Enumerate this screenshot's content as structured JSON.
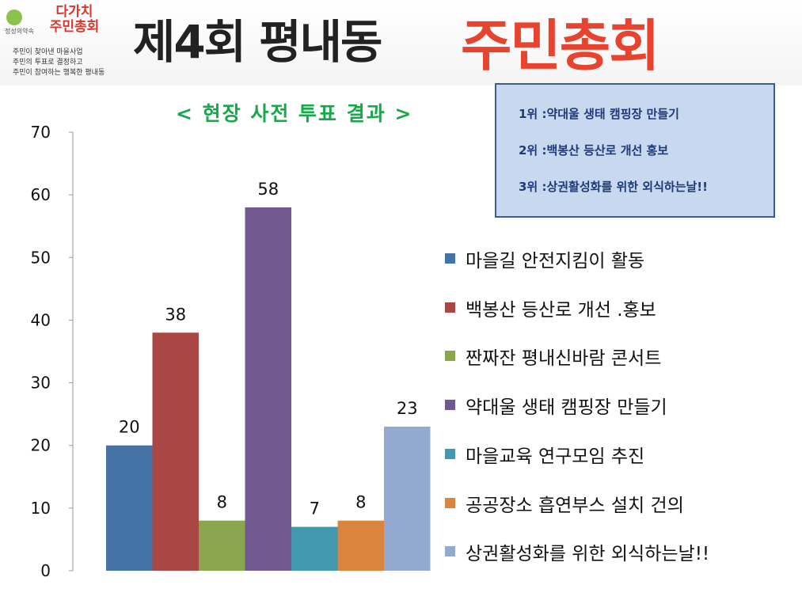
{
  "logo": {
    "mark_text": "정성의약속",
    "title": "다가치\n주민총회",
    "desc": "주민이 찾아낸 마을사업\n주민의 투표로 결정하고\n주민이 참여하는 행복한 평내동"
  },
  "header": {
    "title_black": "제4회 평내동",
    "title_red": "주민총회"
  },
  "subtitle": "< 현장 사전 투표 결과 >",
  "ranking": [
    "1위 :약대울 생태 캠핑장 만들기",
    "2위 :백봉산 등산로 개선 홍보",
    "3위 :상권활성화를 위한 외식하는날!!"
  ],
  "chart_data": {
    "type": "bar",
    "categories": [
      "마을길 안전지킴이 활동",
      "백봉산 등산로 개선 .홍보",
      "짠짜잔 평내신바람 콘서트",
      "약대울 생태 캠핑장 만들기",
      "마을교육 연구모임 추진",
      "공공장소 흡연부스 설치 건의",
      "상권활성화를 위한 외식하는날!!"
    ],
    "values": [
      20,
      38,
      8,
      58,
      7,
      8,
      23
    ],
    "colors": [
      "#4572a7",
      "#aa4643",
      "#89a54e",
      "#71588f",
      "#4198af",
      "#db843d",
      "#93a9cf"
    ],
    "ylim": [
      0,
      70
    ],
    "yticks": [
      0,
      10,
      20,
      30,
      40,
      50,
      60,
      70
    ],
    "legend_position": "right",
    "grid": false
  }
}
